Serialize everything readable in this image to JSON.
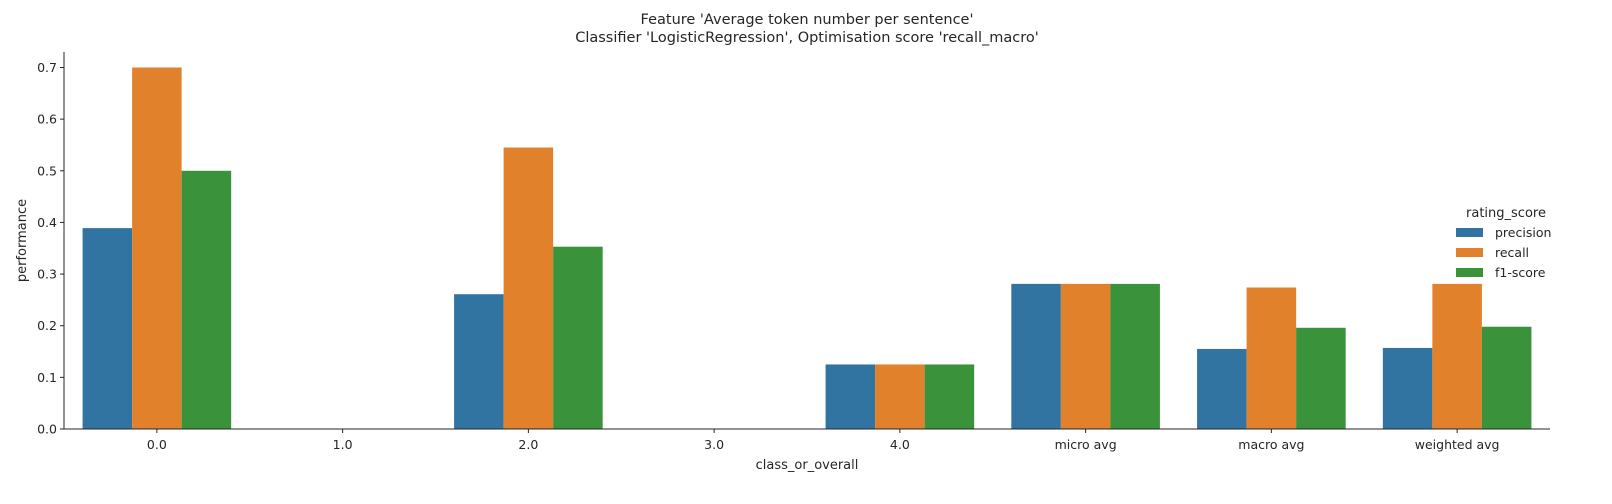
{
  "chart_data": {
    "type": "bar",
    "title_lines": [
      "Feature 'Average token number per sentence'",
      "Classifier 'LogisticRegression', Optimisation score 'recall_macro'"
    ],
    "xlabel": "class_or_overall",
    "ylabel": "performance",
    "categories": [
      "0.0",
      "1.0",
      "2.0",
      "3.0",
      "4.0",
      "micro avg",
      "macro avg",
      "weighted avg"
    ],
    "ylim": [
      0,
      0.73
    ],
    "yticks": [
      0.0,
      0.1,
      0.2,
      0.3,
      0.4,
      0.5,
      0.6,
      0.7
    ],
    "ytick_labels": [
      "0.0",
      "0.1",
      "0.2",
      "0.3",
      "0.4",
      "0.5",
      "0.6",
      "0.7"
    ],
    "grid": false,
    "legend": {
      "title": "rating_score",
      "placement": "right"
    },
    "series": [
      {
        "name": "precision",
        "color": "#3274a1",
        "values": [
          0.389,
          0.0,
          0.261,
          0.0,
          0.125,
          0.281,
          0.155,
          0.157
        ]
      },
      {
        "name": "recall",
        "color": "#e1812c",
        "values": [
          0.7,
          0.0,
          0.545,
          0.0,
          0.125,
          0.281,
          0.274,
          0.281
        ]
      },
      {
        "name": "f1-score",
        "color": "#3a923a",
        "values": [
          0.5,
          0.0,
          0.353,
          0.0,
          0.125,
          0.281,
          0.196,
          0.198
        ]
      }
    ]
  }
}
